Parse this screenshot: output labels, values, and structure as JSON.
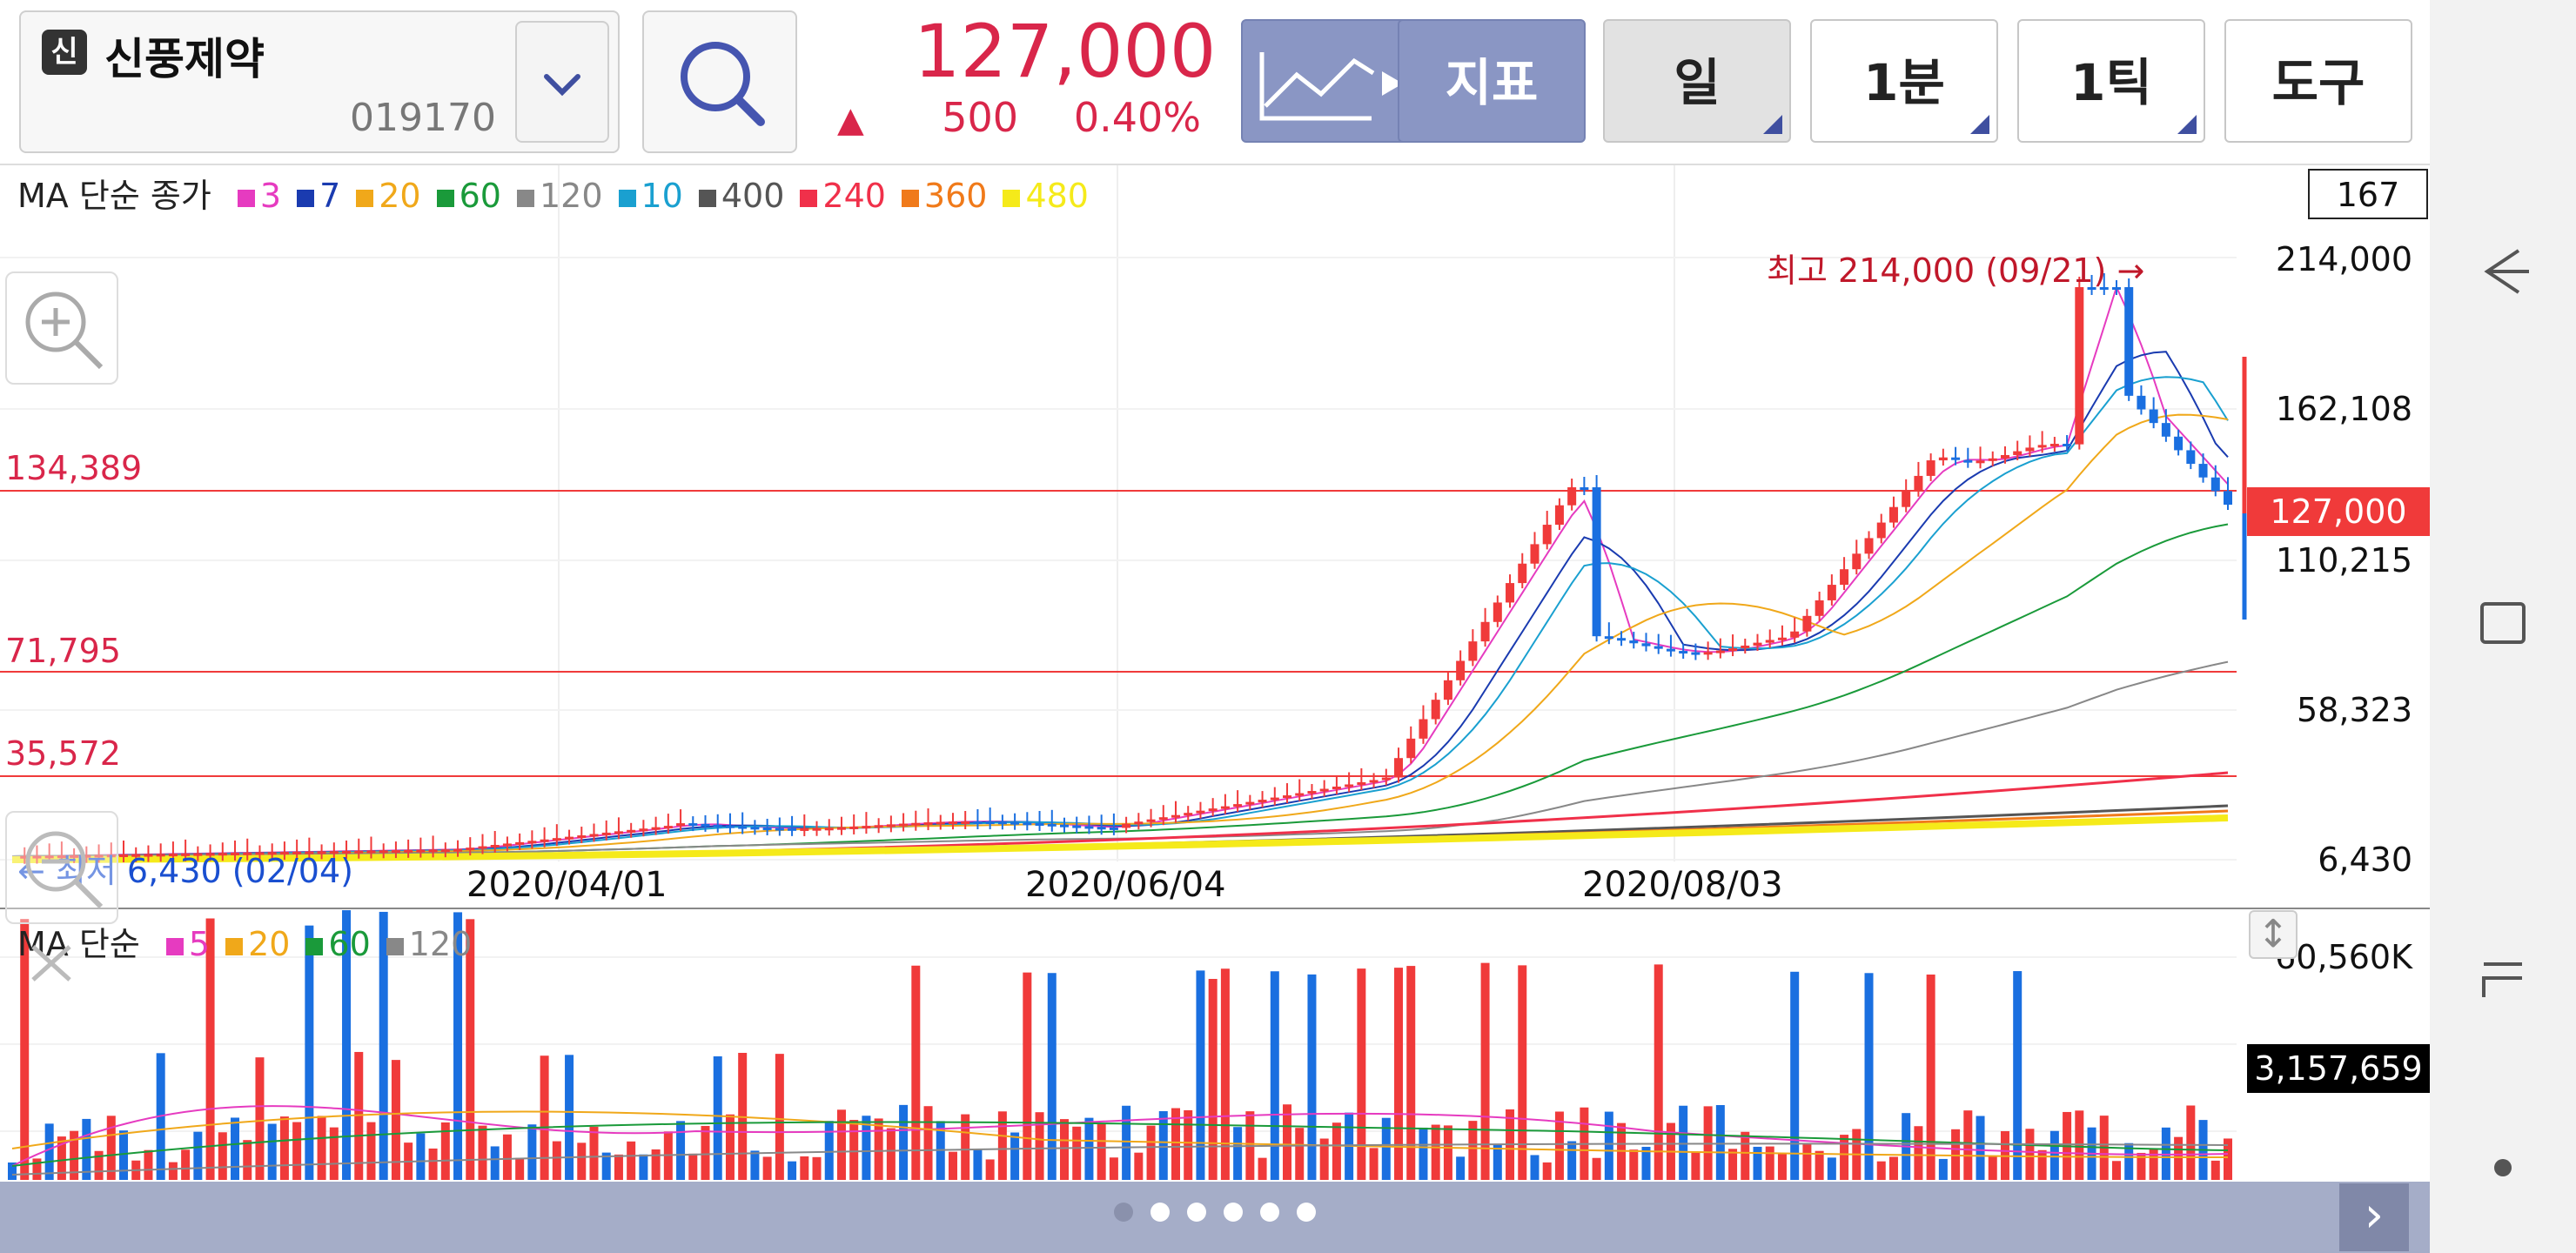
{
  "toolbar": {
    "stock_badge": "신",
    "stock_name": "신풍제약",
    "stock_code": "019170",
    "price": "127,000",
    "change_arrow": "▲",
    "change": "500",
    "change_rate": "0.40%",
    "buttons": {
      "indicator": "지표",
      "period": "일",
      "minute": "1분",
      "tick": "1틱",
      "tools": "도구"
    }
  },
  "chart": {
    "legend_title": "MA 단순 종가",
    "ma_legend": [
      {
        "label": "3",
        "color": "#e63bc0"
      },
      {
        "label": "7",
        "color": "#1a3bb0"
      },
      {
        "label": "20",
        "color": "#f0a81a"
      },
      {
        "label": "60",
        "color": "#1a9a3a"
      },
      {
        "label": "120",
        "color": "#888888"
      },
      {
        "label": "10",
        "color": "#1aa0d0"
      },
      {
        "label": "400",
        "color": "#555555"
      },
      {
        "label": "240",
        "color": "#f0304a"
      },
      {
        "label": "360",
        "color": "#f07a1a"
      },
      {
        "label": "480",
        "color": "#f5ea1a"
      }
    ],
    "count": "167",
    "y_labels": [
      "214,000",
      "162,108",
      "110,215",
      "58,323",
      "6,430"
    ],
    "h_lines": [
      "134,389",
      "71,795",
      "35,572"
    ],
    "x_labels": [
      "2020/04/01",
      "2020/06/04",
      "2020/08/03"
    ],
    "high_label": "최고 214,000 (09/21) →",
    "low_label": "← 최저 6,430 (02/04)",
    "price_tag": "127,000"
  },
  "volume": {
    "legend_title": "MA 단순",
    "ma_legend": [
      {
        "label": "5",
        "color": "#e63bc0"
      },
      {
        "label": "20",
        "color": "#f0a81a"
      },
      {
        "label": "60",
        "color": "#1a9a3a"
      },
      {
        "label": "120",
        "color": "#888888"
      }
    ],
    "max_label": "60,560K",
    "current_tag": "3,157,659"
  },
  "pager": {
    "pages": 6,
    "active": 0,
    "next_icon": "›"
  },
  "navbar": {
    "icons": [
      "back-icon",
      "recent-apps-icon",
      "home-icon",
      "dot-icon"
    ]
  },
  "colors": {
    "up": "#f03a3a",
    "down": "#1a6fe0",
    "accent": "#d9264a"
  }
}
